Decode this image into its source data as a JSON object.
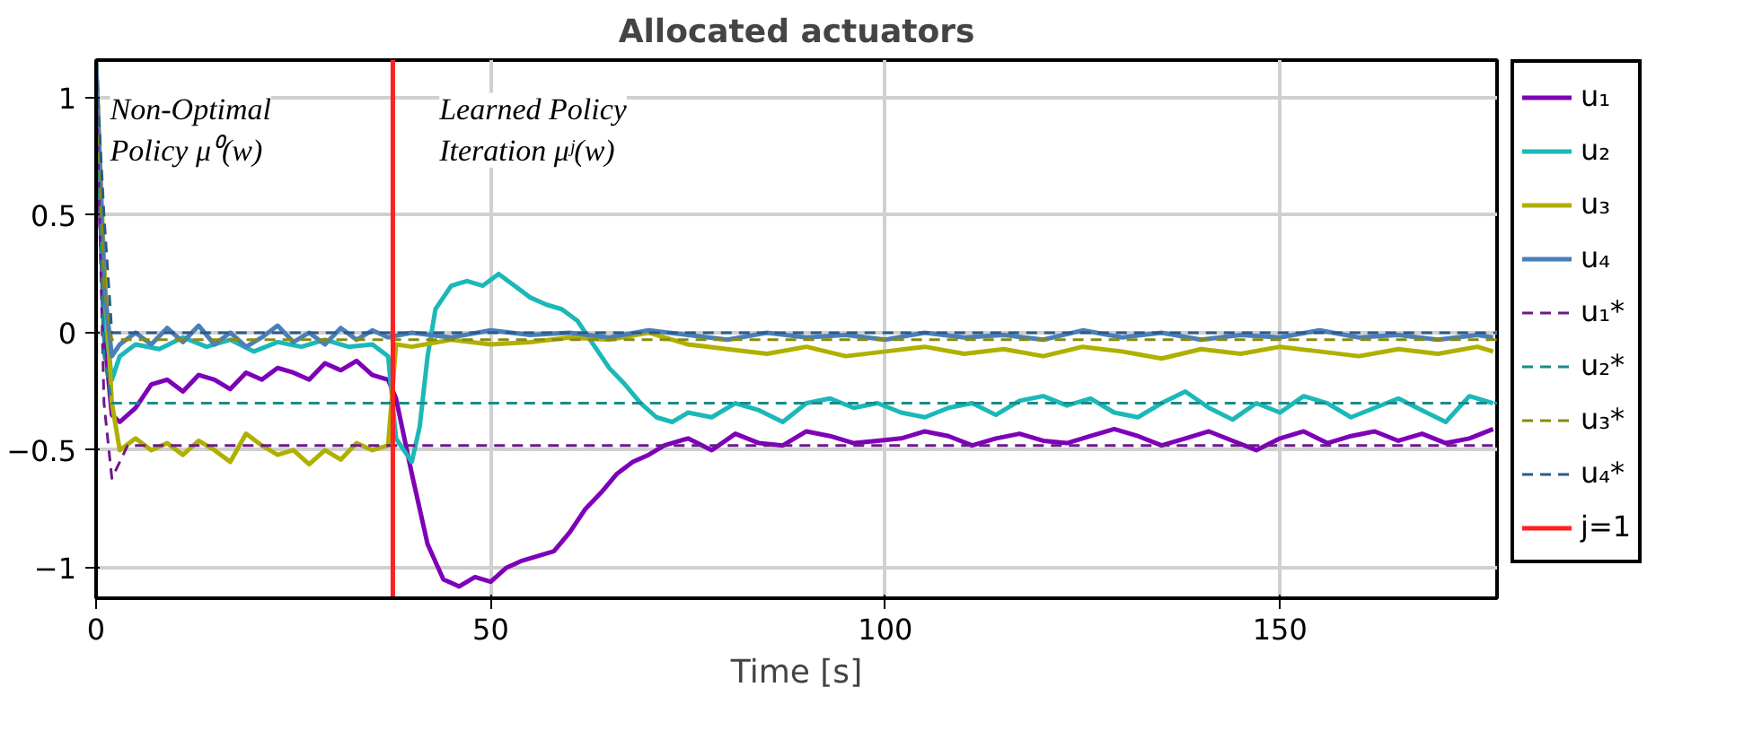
{
  "chart_data": {
    "type": "line",
    "title": "Allocated actuators",
    "xlabel": "Time [s]",
    "annotations": [
      "Non-Optimal\nPolicy μ⁰(w)",
      "Learned Policy\nIteration μʲ(w)"
    ],
    "xlim": [
      0,
      177.5
    ],
    "ylim": [
      -1.13,
      1.16
    ],
    "xticks": [
      0,
      50,
      100,
      150
    ],
    "yticks": [
      -1,
      -0.5,
      0,
      0.5,
      1
    ],
    "grid": true,
    "legend": "right",
    "marker": "none",
    "series": [
      {
        "name": "u₁",
        "color": "#7e00b8",
        "line_style": "solid",
        "x": [
          0,
          1,
          2,
          3,
          5,
          7,
          9,
          11,
          13,
          15,
          17,
          19,
          21,
          23,
          25,
          27,
          29,
          31,
          33,
          35,
          37,
          38,
          40,
          42,
          44,
          46,
          48,
          50,
          52,
          54,
          56,
          58,
          60,
          62,
          64,
          66,
          68,
          70,
          72,
          75,
          78,
          81,
          84,
          87,
          90,
          93,
          96,
          99,
          102,
          105,
          108,
          111,
          114,
          117,
          120,
          123,
          126,
          129,
          132,
          135,
          138,
          141,
          144,
          147,
          150,
          153,
          156,
          159,
          162,
          165,
          168,
          171,
          174,
          177
        ],
        "values": [
          1.1,
          0,
          -0.35,
          -0.38,
          -0.32,
          -0.22,
          -0.2,
          -0.25,
          -0.18,
          -0.2,
          -0.24,
          -0.17,
          -0.2,
          -0.15,
          -0.17,
          -0.2,
          -0.13,
          -0.16,
          -0.12,
          -0.18,
          -0.2,
          -0.28,
          -0.6,
          -0.9,
          -1.05,
          -1.08,
          -1.04,
          -1.06,
          -1.0,
          -0.97,
          -0.95,
          -0.93,
          -0.85,
          -0.75,
          -0.68,
          -0.6,
          -0.55,
          -0.52,
          -0.48,
          -0.45,
          -0.5,
          -0.43,
          -0.47,
          -0.48,
          -0.42,
          -0.44,
          -0.47,
          -0.46,
          -0.45,
          -0.42,
          -0.44,
          -0.48,
          -0.45,
          -0.43,
          -0.46,
          -0.47,
          -0.44,
          -0.41,
          -0.44,
          -0.48,
          -0.45,
          -0.42,
          -0.46,
          -0.5,
          -0.45,
          -0.42,
          -0.47,
          -0.44,
          -0.42,
          -0.46,
          -0.43,
          -0.47,
          -0.45,
          -0.41
        ]
      },
      {
        "name": "u₂",
        "color": "#1cb8b8",
        "line_style": "solid",
        "x": [
          0,
          1,
          2,
          3,
          5,
          8,
          11,
          14,
          17,
          20,
          23,
          26,
          29,
          32,
          35,
          37,
          38,
          40,
          41,
          42,
          43,
          45,
          47,
          49,
          51,
          53,
          55,
          57,
          59,
          61,
          63,
          65,
          67,
          69,
          71,
          73,
          75,
          78,
          81,
          84,
          87,
          90,
          93,
          96,
          99,
          102,
          105,
          108,
          111,
          114,
          117,
          120,
          123,
          126,
          129,
          132,
          135,
          138,
          141,
          144,
          147,
          150,
          153,
          156,
          159,
          162,
          165,
          168,
          171,
          174,
          177
        ],
        "values": [
          1.15,
          0.1,
          -0.2,
          -0.1,
          -0.05,
          -0.07,
          -0.02,
          -0.06,
          -0.03,
          -0.08,
          -0.04,
          -0.06,
          -0.03,
          -0.06,
          -0.05,
          -0.1,
          -0.45,
          -0.55,
          -0.4,
          -0.1,
          0.1,
          0.2,
          0.22,
          0.2,
          0.25,
          0.2,
          0.15,
          0.12,
          0.1,
          0.05,
          -0.05,
          -0.15,
          -0.22,
          -0.3,
          -0.36,
          -0.38,
          -0.34,
          -0.36,
          -0.3,
          -0.33,
          -0.38,
          -0.3,
          -0.28,
          -0.32,
          -0.3,
          -0.34,
          -0.36,
          -0.32,
          -0.3,
          -0.35,
          -0.29,
          -0.27,
          -0.31,
          -0.28,
          -0.34,
          -0.36,
          -0.3,
          -0.25,
          -0.32,
          -0.37,
          -0.3,
          -0.34,
          -0.27,
          -0.3,
          -0.36,
          -0.32,
          -0.28,
          -0.33,
          -0.38,
          -0.27,
          -0.3
        ]
      },
      {
        "name": "u₃",
        "color": "#b0b000",
        "line_style": "solid",
        "x": [
          0,
          1,
          2,
          3,
          5,
          7,
          9,
          11,
          13,
          15,
          17,
          19,
          21,
          23,
          25,
          27,
          29,
          31,
          33,
          35,
          37,
          38,
          40,
          45,
          50,
          55,
          60,
          65,
          70,
          75,
          80,
          85,
          90,
          95,
          100,
          105,
          110,
          115,
          120,
          125,
          130,
          135,
          140,
          145,
          150,
          155,
          160,
          165,
          170,
          175,
          177
        ],
        "values": [
          1.15,
          0.3,
          -0.3,
          -0.5,
          -0.45,
          -0.5,
          -0.47,
          -0.52,
          -0.46,
          -0.5,
          -0.55,
          -0.43,
          -0.48,
          -0.52,
          -0.5,
          -0.56,
          -0.5,
          -0.54,
          -0.47,
          -0.5,
          -0.48,
          -0.05,
          -0.06,
          -0.03,
          -0.05,
          -0.04,
          -0.02,
          -0.03,
          0,
          -0.05,
          -0.07,
          -0.09,
          -0.06,
          -0.1,
          -0.08,
          -0.06,
          -0.09,
          -0.07,
          -0.1,
          -0.06,
          -0.08,
          -0.11,
          -0.07,
          -0.09,
          -0.06,
          -0.08,
          -0.1,
          -0.07,
          -0.09,
          -0.06,
          -0.08
        ]
      },
      {
        "name": "u₄",
        "color": "#4a7fb8",
        "line_style": "solid",
        "x": [
          0,
          1,
          2,
          3,
          5,
          7,
          9,
          11,
          13,
          15,
          17,
          19,
          21,
          23,
          25,
          27,
          29,
          31,
          33,
          35,
          37,
          40,
          45,
          50,
          55,
          60,
          65,
          70,
          75,
          80,
          85,
          90,
          95,
          100,
          105,
          110,
          115,
          120,
          125,
          130,
          135,
          140,
          145,
          150,
          155,
          160,
          165,
          170,
          175,
          177
        ],
        "values": [
          1.15,
          0.2,
          -0.1,
          -0.05,
          0,
          -0.05,
          0.02,
          -0.04,
          0.03,
          -0.05,
          0,
          -0.06,
          -0.02,
          0.03,
          -0.04,
          0,
          -0.05,
          0.02,
          -0.03,
          0.01,
          -0.02,
          0,
          -0.02,
          0.01,
          -0.01,
          0,
          -0.02,
          0.01,
          -0.01,
          -0.03,
          0,
          -0.02,
          -0.01,
          -0.03,
          0,
          -0.02,
          -0.01,
          -0.03,
          0.01,
          -0.02,
          0,
          -0.03,
          -0.01,
          -0.02,
          0.01,
          -0.02,
          -0.01,
          -0.03,
          -0.01,
          -0.02
        ]
      },
      {
        "name": "u₁*",
        "color": "#6a1a8a",
        "line_style": "dashed",
        "x": [
          0,
          1,
          2,
          4,
          177.5
        ],
        "values": [
          1.1,
          -0.3,
          -0.62,
          -0.48,
          -0.48
        ]
      },
      {
        "name": "u₂*",
        "color": "#1a8a8a",
        "line_style": "dashed",
        "x": [
          0,
          1,
          2,
          4,
          177.5
        ],
        "values": [
          1.15,
          -0.1,
          -0.3,
          -0.3,
          -0.3
        ]
      },
      {
        "name": "u₃*",
        "color": "#8a8a10",
        "line_style": "dashed",
        "x": [
          0,
          1,
          2,
          4,
          177.5
        ],
        "values": [
          1.15,
          0.2,
          -0.03,
          -0.03,
          -0.03
        ]
      },
      {
        "name": "u₄*",
        "color": "#2a5a8a",
        "line_style": "dashed",
        "x": [
          0,
          1,
          2,
          4,
          177.5
        ],
        "values": [
          1.15,
          0.5,
          0,
          0,
          0
        ]
      },
      {
        "name": "j=1",
        "color": "#ff2020",
        "line_style": "solid",
        "x": [
          37.6,
          37.6
        ],
        "values": [
          -1.13,
          1.16
        ]
      }
    ]
  }
}
